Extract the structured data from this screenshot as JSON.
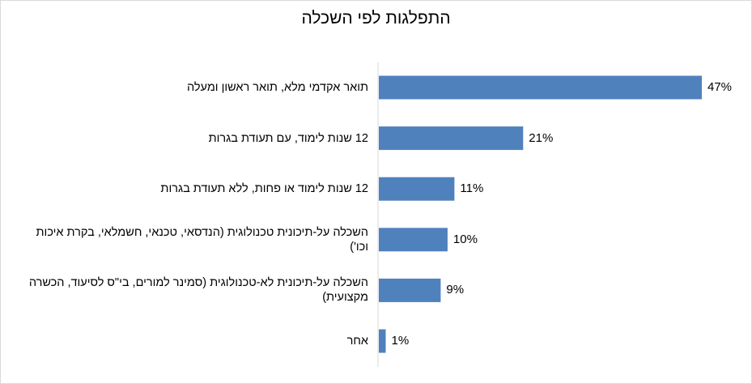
{
  "chart_data": {
    "type": "bar",
    "orientation": "horizontal",
    "title": "התפלגות לפי השכלה",
    "xlabel": "",
    "ylabel": "",
    "value_suffix": "%",
    "xlim": [
      0,
      47
    ],
    "grid": false,
    "legend": "none",
    "bar_color": "#4F81BD",
    "categories": [
      "תואר אקדמי מלא, תואר ראשון ומעלה",
      "12 שנות לימוד,  עם תעודת בגרות",
      "12 שנות לימוד או פחות, ללא תעודת בגרות",
      "השכלה על-תיכונית טכנולוגית (הנדסאי, טכנאי, חשמלאי, בקרת איכות וכו')",
      "השכלה על-תיכונית לא-טכנולוגית (סמינר למורים, בי\"ס לסיעוד, הכשרה מקצועית)",
      "אחר"
    ],
    "values": [
      47,
      21,
      11,
      10,
      9,
      1
    ],
    "data_labels": [
      "47%",
      "21%",
      "11%",
      "10%",
      "9%",
      "1%"
    ]
  }
}
